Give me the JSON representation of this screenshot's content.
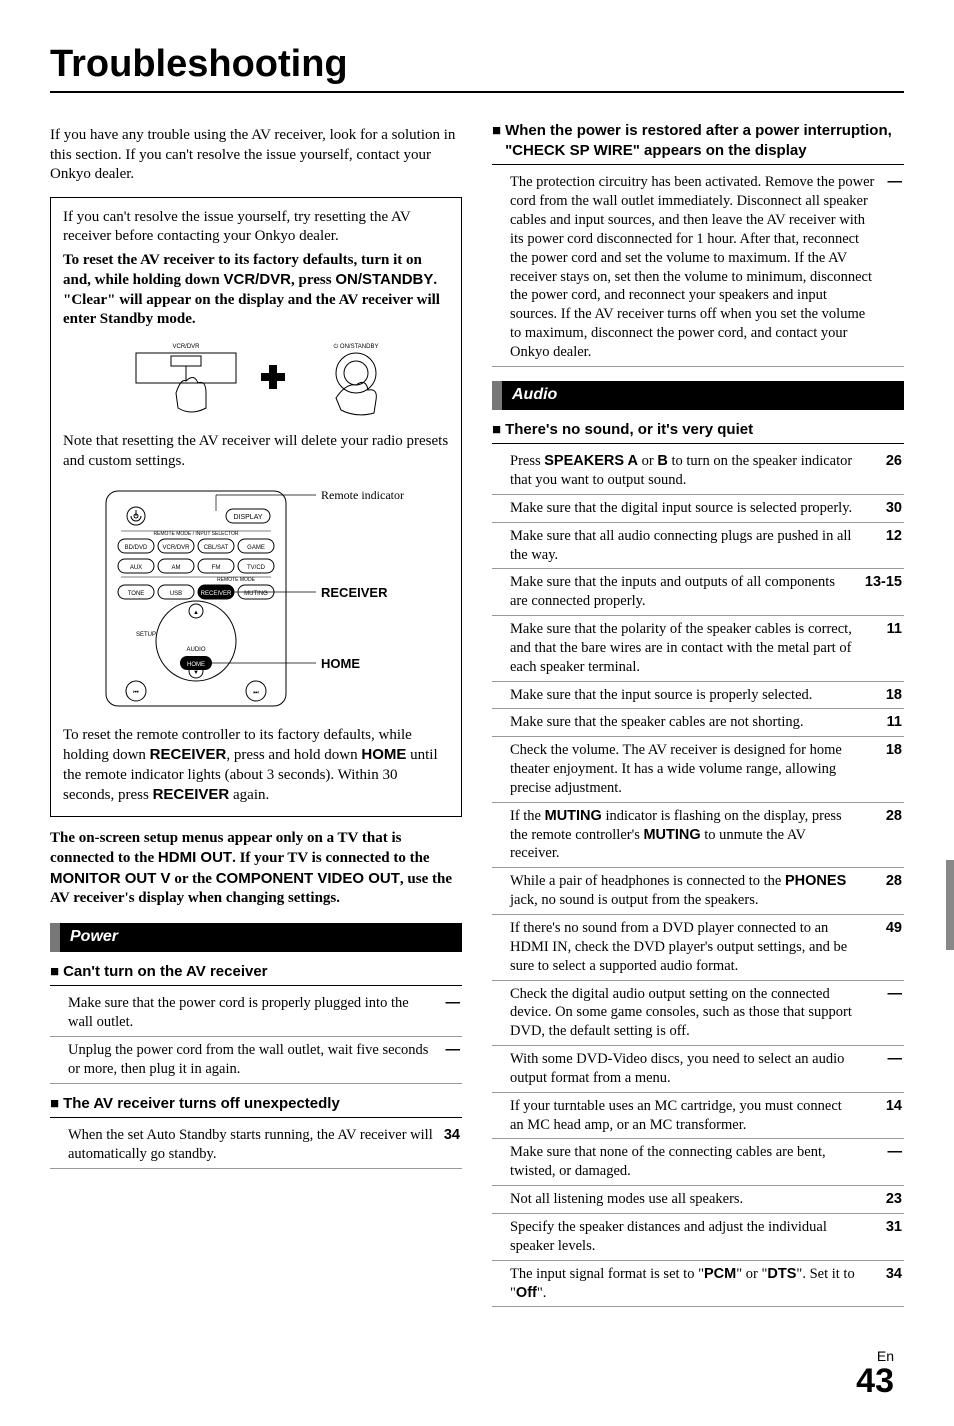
{
  "title": "Troubleshooting",
  "intro": "If you have any trouble using the AV receiver, look for a solution in this section. If you can't resolve the issue yourself, contact your Onkyo dealer.",
  "reset_box": {
    "p1": "If you can't resolve the issue yourself, try resetting the AV receiver before contacting your Onkyo dealer.",
    "p2_pre": "To reset the AV receiver to its factory defaults, turn it on and, while holding down ",
    "p2_btn1": "VCR/DVR",
    "p2_mid": ", press ",
    "p2_btn2": "ON/STANDBY",
    "p2_post": ". \"Clear\" will appear on the display and the AV receiver will enter Standby mode.",
    "svg_labels": {
      "vcr": "VCR/DVR",
      "standby": "ON/STANDBY"
    },
    "p3": "Note that resetting the AV receiver will delete your radio presets and custom settings.",
    "remote_labels": {
      "remote_indicator": "Remote indicator",
      "receiver": "RECEIVER",
      "home": "HOME",
      "display": "DISPLAY",
      "mode_line": "REMOTE MODE / INPUT SELECTOR",
      "bddvd": "BD/DVD",
      "vcrdvr": "VCR/DVR",
      "cblsat": "CBL/SAT",
      "game": "GAME",
      "aux": "AUX",
      "am": "AM",
      "fm": "FM",
      "tvcd": "TV/CD",
      "remote_mode": "REMOTE MODE",
      "tone": "TONE",
      "usb": "USB",
      "receiver_btn": "RECEIVER",
      "muting": "MUTING",
      "setup": "SETUP",
      "audio": "AUDIO",
      "home_btn": "HOME"
    },
    "p4_pre": "To reset the remote controller to its factory defaults, while holding down ",
    "p4_b1": "RECEIVER",
    "p4_mid1": ", press and hold down ",
    "p4_b2": "HOME",
    "p4_mid2": " until the remote indicator lights (about 3 seconds). Within 30 seconds, press ",
    "p4_b3": "RECEIVER",
    "p4_post": " again."
  },
  "osd_note": {
    "pre": "The on-screen setup menus appear only on a TV that is connected to the ",
    "b1": "HDMI OUT",
    "mid1": ". If your TV is connected to the ",
    "b2": "MONITOR OUT V",
    "mid2": " or the ",
    "b3": "COMPONENT VIDEO OUT",
    "post": ", use the AV receiver's display when changing settings."
  },
  "power": {
    "heading": "Power",
    "sub1": "Can't turn on the AV receiver",
    "rows1": [
      {
        "text": "Make sure that the power cord is properly plugged into the wall outlet.",
        "page": "—"
      },
      {
        "text": "Unplug the power cord from the wall outlet, wait five seconds or more, then plug it in again.",
        "page": "—"
      }
    ],
    "sub2": "The AV receiver turns off unexpectedly",
    "rows2": [
      {
        "text": "When the set Auto Standby starts running, the AV receiver will automatically go standby.",
        "page": "34"
      }
    ]
  },
  "check_sp": {
    "heading": "When the power is restored after a power interruption, \"CHECK SP WIRE\" appears on the display",
    "text": "The protection circuitry has been activated. Remove the power cord from the wall outlet immediately. Disconnect all speaker cables and input sources, and then leave the AV receiver with its power cord disconnected for 1 hour. After that, reconnect the power cord and set the volume to maximum. If the AV receiver stays on, set then the volume to minimum, disconnect the power cord, and reconnect your speakers and input sources. If the AV receiver turns off when you set the volume to maximum, disconnect the power cord, and contact your Onkyo dealer.",
    "page": "—"
  },
  "audio": {
    "heading": "Audio",
    "sub1": "There's no sound, or it's very quiet",
    "rows": [
      {
        "html": "Press <span class='sans-b'>SPEAKERS A</span> or <span class='sans-b'>B</span> to turn on the speaker indicator that you want to output sound.",
        "page": "26"
      },
      {
        "html": "Make sure that the digital input source is selected properly.",
        "page": "30"
      },
      {
        "html": "Make sure that all audio connecting plugs are pushed in all the way.",
        "page": "12"
      },
      {
        "html": "Make sure that the inputs and outputs of all components are connected properly.",
        "page": "13-15"
      },
      {
        "html": "Make sure that the polarity of the speaker cables is correct, and that the bare wires are in contact with the metal part of each speaker terminal.",
        "page": "11"
      },
      {
        "html": "Make sure that the input source is properly selected.",
        "page": "18"
      },
      {
        "html": "Make sure that the speaker cables are not shorting.",
        "page": "11"
      },
      {
        "html": "Check the volume. The AV receiver is designed for home theater enjoyment. It has a wide volume range, allowing precise adjustment.",
        "page": "18"
      },
      {
        "html": "If the <span class='sans-b'>MUTING</span> indicator is flashing on the display, press the remote controller's <span class='sans-b'>MUTING</span> to unmute the AV receiver.",
        "page": "28"
      },
      {
        "html": "While a pair of headphones is connected to the <span class='sans-b'>PHONES</span> jack, no sound is output from the speakers.",
        "page": "28"
      },
      {
        "html": "If there's no sound from a DVD player connected to an HDMI IN, check the DVD player's output settings, and be sure to select a supported audio format.",
        "page": "49"
      },
      {
        "html": "Check the digital audio output setting on the connected device. On some game consoles, such as those that support DVD, the default setting is off.",
        "page": "—"
      },
      {
        "html": "With some DVD-Video discs, you need to select an audio output format from a menu.",
        "page": "—"
      },
      {
        "html": "If your turntable uses an MC cartridge, you must connect an MC head amp, or an MC transformer.",
        "page": "14"
      },
      {
        "html": "Make sure that none of the connecting cables are bent, twisted, or damaged.",
        "page": "—"
      },
      {
        "html": "Not all listening modes use all speakers.",
        "page": "23"
      },
      {
        "html": "Specify the speaker distances and adjust the individual speaker levels.",
        "page": "31"
      },
      {
        "html": "The input signal format is set to \"<span class='sans-b'>PCM</span>\" or \"<span class='sans-b'>DTS</span>\". Set it to \"<span class='sans-b'>Off</span>\".",
        "page": "34"
      }
    ]
  },
  "footer": {
    "lang": "En",
    "page": "43"
  },
  "colors": {
    "text": "#000000",
    "bg": "#ffffff",
    "bar_bg": "#000000",
    "bar_accent": "#777777",
    "rule": "#999999",
    "edge_tab": "#888888"
  }
}
